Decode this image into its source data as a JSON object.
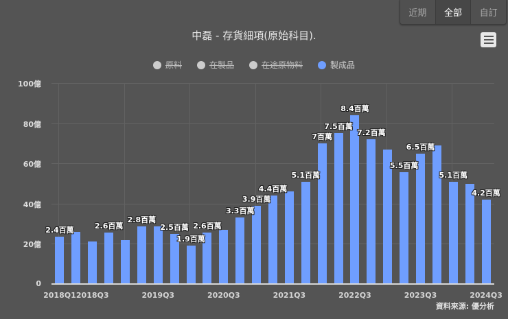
{
  "range_selector": {
    "buttons": [
      {
        "label": "近期",
        "active": false
      },
      {
        "label": "全部",
        "active": true
      },
      {
        "label": "自訂",
        "active": false
      }
    ]
  },
  "menu": {
    "icon": "hamburger-menu-icon"
  },
  "credit": "資料來源: 優分析",
  "colors": {
    "background": "#545454",
    "bar": "#6f9eff",
    "legend_off": "#cccccc"
  },
  "chart_data": {
    "type": "bar",
    "title": "中磊 - 存貨細項(原始科目).",
    "xlabel": "",
    "ylabel": "",
    "ylim": [
      0,
      100
    ],
    "y_ticks": [
      "0",
      "20億",
      "40億",
      "60億",
      "80億",
      "100億"
    ],
    "grid": true,
    "legend_position": "top",
    "legend": [
      {
        "name": "原料",
        "visible": false
      },
      {
        "name": "在製品",
        "visible": false
      },
      {
        "name": "在途原物料",
        "visible": false
      },
      {
        "name": "製成品",
        "visible": true
      }
    ],
    "categories": [
      "2018Q1",
      "2018Q2",
      "2018Q3",
      "2018Q4",
      "2019Q1",
      "2019Q2",
      "2019Q3",
      "2019Q4",
      "2020Q1",
      "2020Q2",
      "2020Q3",
      "2020Q4",
      "2021Q1",
      "2021Q2",
      "2021Q3",
      "2021Q4",
      "2022Q1",
      "2022Q2",
      "2022Q3",
      "2022Q4",
      "2023Q1",
      "2023Q2",
      "2023Q3",
      "2023Q4",
      "2024Q1",
      "2024Q2",
      "2024Q3"
    ],
    "x_tick_labels": [
      {
        "index": 0,
        "label": "2018Q1"
      },
      {
        "index": 2,
        "label": "2018Q3"
      },
      {
        "index": 6,
        "label": "2019Q3"
      },
      {
        "index": 10,
        "label": "2020Q3"
      },
      {
        "index": 14,
        "label": "2021Q3"
      },
      {
        "index": 18,
        "label": "2022Q3"
      },
      {
        "index": 22,
        "label": "2023Q3"
      },
      {
        "index": 26,
        "label": "2024Q3"
      }
    ],
    "series": [
      {
        "name": "製成品",
        "unit": "億",
        "values": [
          23.5,
          26,
          21,
          25.5,
          22,
          28.5,
          28.5,
          25,
          19,
          25.5,
          27,
          33,
          39,
          44,
          46,
          51,
          70,
          75,
          84,
          72,
          67,
          55.5,
          65,
          69,
          51,
          50,
          42
        ]
      }
    ],
    "data_labels": [
      {
        "index": 0,
        "text": "2.4百萬"
      },
      {
        "index": 3,
        "text": "2.6百萬"
      },
      {
        "index": 5,
        "text": "2.8百萬"
      },
      {
        "index": 7,
        "text": "2.5百萬"
      },
      {
        "index": 8,
        "text": "1.9百萬"
      },
      {
        "index": 9,
        "text": "2.6百萬"
      },
      {
        "index": 11,
        "text": "3.3百萬"
      },
      {
        "index": 12,
        "text": "3.9百萬"
      },
      {
        "index": 13,
        "text": "4.4百萬"
      },
      {
        "index": 15,
        "text": "5.1百萬"
      },
      {
        "index": 16,
        "text": "7百萬"
      },
      {
        "index": 17,
        "text": "7.5百萬"
      },
      {
        "index": 18,
        "text": "8.4百萬"
      },
      {
        "index": 19,
        "text": "7.2百萬"
      },
      {
        "index": 21,
        "text": "5.5百萬"
      },
      {
        "index": 22,
        "text": "6.5百萬"
      },
      {
        "index": 24,
        "text": "5.1百萬"
      },
      {
        "index": 26,
        "text": "4.2百萬"
      }
    ]
  }
}
